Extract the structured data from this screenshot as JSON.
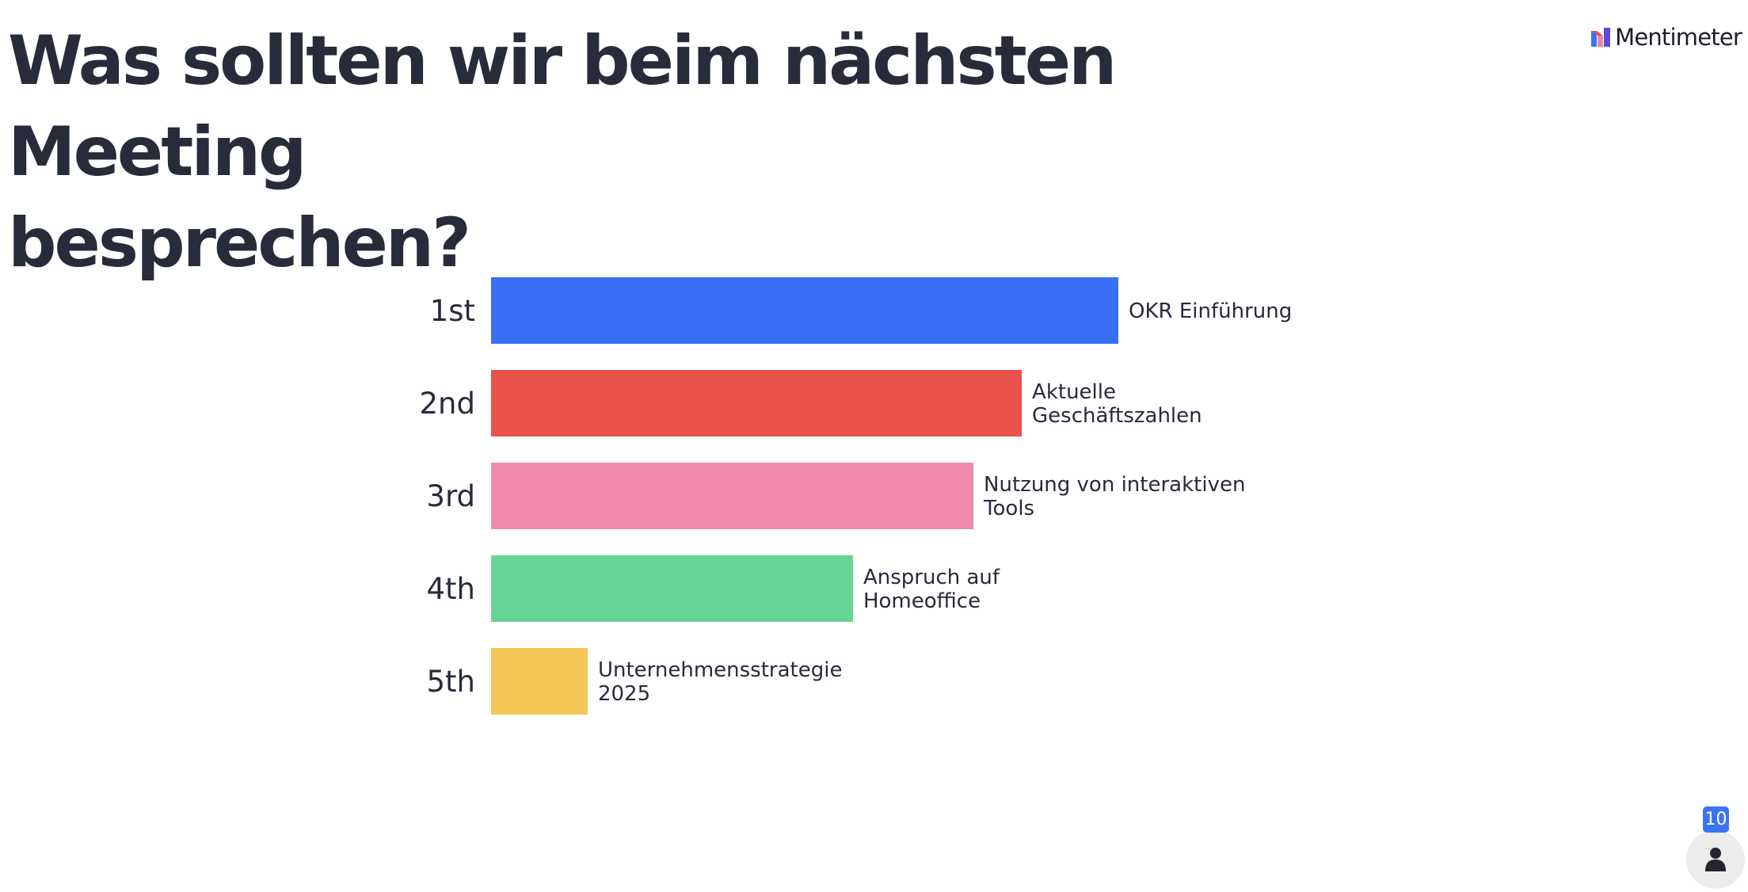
{
  "question": {
    "line1": "Was sollten wir beim nächsten Meeting",
    "line2": "besprechen?"
  },
  "brand": {
    "name": "Mentimeter",
    "icon": "mentimeter-logo-icon"
  },
  "participants": {
    "count": "10",
    "icon": "person-icon"
  },
  "chart_data": {
    "type": "bar",
    "orientation": "horizontal",
    "title": "",
    "xlabel": "",
    "ylabel": "",
    "categories": [
      "1st",
      "2nd",
      "3rd",
      "4th",
      "5th"
    ],
    "labels": [
      [
        "OKR Einführung"
      ],
      [
        "Aktuelle",
        "Geschäftszahlen"
      ],
      [
        "Nutzung von interaktiven",
        "Tools"
      ],
      [
        "Anspruch auf",
        "Homeoffice"
      ],
      [
        "Unternehmensstrategie",
        "2025"
      ]
    ],
    "values": [
      100,
      84.6,
      76.9,
      57.7,
      15.4
    ],
    "colors": [
      "#386ff5",
      "#e9524a",
      "#ee89a9",
      "#69d497",
      "#f5c658"
    ],
    "xlim": [
      0,
      100
    ],
    "grid": false,
    "legend": "none"
  }
}
